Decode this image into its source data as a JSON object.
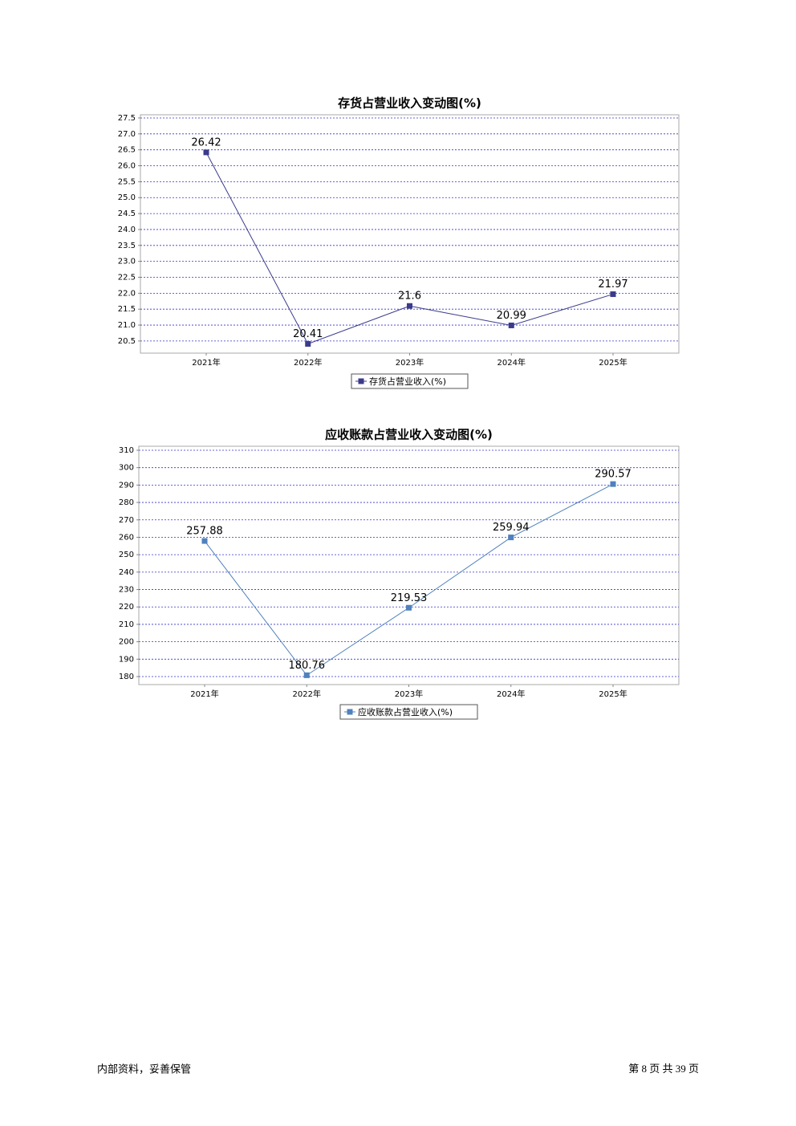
{
  "chart_data": [
    {
      "type": "line",
      "title": "存货占营业收入变动图(%)",
      "categories": [
        "2021年",
        "2022年",
        "2023年",
        "2024年",
        "2025年"
      ],
      "series": [
        {
          "name": "存货占营业收入(%)",
          "color": "#3b3b8c",
          "values": [
            26.42,
            20.41,
            21.6,
            20.99,
            21.97
          ]
        }
      ],
      "ylim": [
        20.12,
        27.6
      ],
      "yticks": [
        {
          "value": 20.5,
          "label": "20.5"
        },
        {
          "value": 21,
          "label": "21.0"
        },
        21.5,
        {
          "value": 22,
          "label": "22.0"
        },
        22.5,
        {
          "value": 23,
          "label": "23.0"
        },
        23.5,
        {
          "value": 24,
          "label": "24.0"
        },
        24.5,
        {
          "value": 25,
          "label": "25.0"
        },
        25.5,
        {
          "value": 26,
          "label": "26.0"
        },
        26.5,
        {
          "value": 27,
          "label": "27.0"
        },
        27.5
      ],
      "grid": true
    },
    {
      "type": "line",
      "title": "应收账款占营业收入变动图(%)",
      "categories": [
        "2021年",
        "2022年",
        "2023年",
        "2024年",
        "2025年"
      ],
      "series": [
        {
          "name": "应收账款占营业收入(%)",
          "color": "#4f81bd",
          "values": [
            257.88,
            180.76,
            219.53,
            259.94,
            290.57
          ]
        }
      ],
      "ylim": [
        175.4,
        312.3
      ],
      "yticks": [
        180,
        190,
        200,
        210,
        220,
        230,
        240,
        250,
        260,
        270,
        280,
        290,
        300,
        310
      ],
      "grid": true
    }
  ],
  "footer": {
    "note": "内部资料，妥善保管",
    "page_label": "第 8 页  共 39 页"
  }
}
